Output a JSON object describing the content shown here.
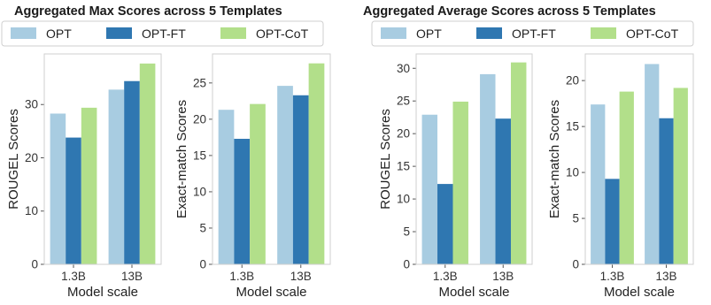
{
  "colors": {
    "OPT": "#a8cce1",
    "OPT-FT": "#2f77b1",
    "OPT-CoT": "#b2df8a"
  },
  "groups": [
    {
      "title": "Aggregated Max Scores across 5 Templates",
      "legend": [
        "OPT",
        "OPT-FT",
        "OPT-CoT"
      ]
    },
    {
      "title": "Aggregated Average Scores across 5 Templates",
      "legend": [
        "OPT",
        "OPT-FT",
        "OPT-CoT"
      ]
    }
  ],
  "chart_data": [
    {
      "type": "bar",
      "group": 0,
      "categories": [
        "1.3B",
        "13B"
      ],
      "series": [
        {
          "name": "OPT",
          "values": [
            28.3,
            32.8
          ]
        },
        {
          "name": "OPT-FT",
          "values": [
            23.8,
            34.4
          ]
        },
        {
          "name": "OPT-CoT",
          "values": [
            29.4,
            37.7
          ]
        }
      ],
      "xlabel": "Model scale",
      "ylabel": "ROUGEL Scores",
      "ylim": [
        0,
        39.5
      ],
      "yticks": [
        0,
        10,
        20,
        30
      ],
      "grid": false
    },
    {
      "type": "bar",
      "group": 0,
      "categories": [
        "1.3B",
        "13B"
      ],
      "series": [
        {
          "name": "OPT",
          "values": [
            21.3,
            24.6
          ]
        },
        {
          "name": "OPT-FT",
          "values": [
            17.3,
            23.3
          ]
        },
        {
          "name": "OPT-CoT",
          "values": [
            22.1,
            27.7
          ]
        }
      ],
      "xlabel": "Model scale",
      "ylabel": "Exact-match Scores",
      "ylim": [
        0,
        29.0
      ],
      "yticks": [
        0,
        5,
        10,
        15,
        20,
        25
      ],
      "grid": false
    },
    {
      "type": "bar",
      "group": 1,
      "categories": [
        "1.3B",
        "13B"
      ],
      "series": [
        {
          "name": "OPT",
          "values": [
            22.9,
            29.1
          ]
        },
        {
          "name": "OPT-FT",
          "values": [
            12.3,
            22.3
          ]
        },
        {
          "name": "OPT-CoT",
          "values": [
            24.9,
            30.9
          ]
        }
      ],
      "xlabel": "Model scale",
      "ylabel": "ROUGEL Scores",
      "ylim": [
        0,
        32.2
      ],
      "yticks": [
        0,
        5,
        10,
        15,
        20,
        25,
        30
      ],
      "grid": false
    },
    {
      "type": "bar",
      "group": 1,
      "categories": [
        "1.3B",
        "13B"
      ],
      "series": [
        {
          "name": "OPT",
          "values": [
            17.4,
            21.8
          ]
        },
        {
          "name": "OPT-FT",
          "values": [
            9.3,
            15.9
          ]
        },
        {
          "name": "OPT-CoT",
          "values": [
            18.8,
            19.2
          ]
        }
      ],
      "xlabel": "Model scale",
      "ylabel": "Exact-match Scores",
      "ylim": [
        0,
        22.9
      ],
      "yticks": [
        0,
        5,
        10,
        15,
        20
      ],
      "grid": false
    }
  ]
}
